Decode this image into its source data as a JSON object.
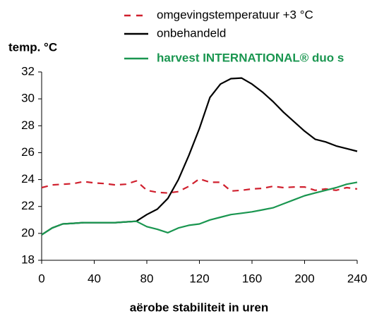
{
  "chart_data": {
    "type": "line",
    "title": "temp. °C",
    "x_label": "aërobe stabiliteit in uren",
    "x": [
      0,
      8,
      16,
      24,
      32,
      40,
      48,
      56,
      64,
      72,
      80,
      88,
      96,
      104,
      112,
      120,
      128,
      136,
      144,
      152,
      160,
      168,
      176,
      184,
      192,
      200,
      208,
      216,
      224,
      232,
      240
    ],
    "series": [
      {
        "name": "omgevingstemperatuur +3 °C",
        "color": "#d0202e",
        "dashed": true,
        "values": [
          23.4,
          23.6,
          23.65,
          23.7,
          23.85,
          23.75,
          23.7,
          23.6,
          23.65,
          23.9,
          23.2,
          23.05,
          23,
          23.1,
          23.5,
          24.05,
          23.8,
          23.8,
          23.15,
          23.2,
          23.3,
          23.35,
          23.5,
          23.4,
          23.45,
          23.45,
          23.2,
          23.3,
          23.2,
          23.4,
          23.3
        ]
      },
      {
        "name": "onbehandeld",
        "color": "#000000",
        "dashed": false,
        "values": [
          19.9,
          20.4,
          20.7,
          20.75,
          20.8,
          20.8,
          20.8,
          20.8,
          20.85,
          20.9,
          21.4,
          21.8,
          22.6,
          24,
          25.8,
          27.8,
          30.1,
          31.1,
          31.5,
          31.55,
          31.1,
          30.5,
          29.8,
          29,
          28.3,
          27.6,
          27,
          26.8,
          26.5,
          26.3,
          26.1
        ]
      },
      {
        "name": "harvest INTERNATIONAL® duo s",
        "color": "#1a9650",
        "dashed": false,
        "bold_legend": true,
        "values": [
          19.9,
          20.4,
          20.7,
          20.75,
          20.8,
          20.8,
          20.8,
          20.8,
          20.85,
          20.9,
          20.5,
          20.3,
          20.05,
          20.4,
          20.6,
          20.7,
          21,
          21.2,
          21.4,
          21.5,
          21.6,
          21.75,
          21.9,
          22.2,
          22.5,
          22.8,
          23,
          23.2,
          23.4,
          23.65,
          23.8
        ]
      }
    ],
    "xlim": [
      0,
      240
    ],
    "xticks": [
      0,
      40,
      80,
      120,
      160,
      200,
      240
    ],
    "ylim": [
      18,
      32
    ],
    "yticks": [
      18,
      20,
      22,
      24,
      26,
      28,
      30,
      32
    ],
    "grid": false
  }
}
